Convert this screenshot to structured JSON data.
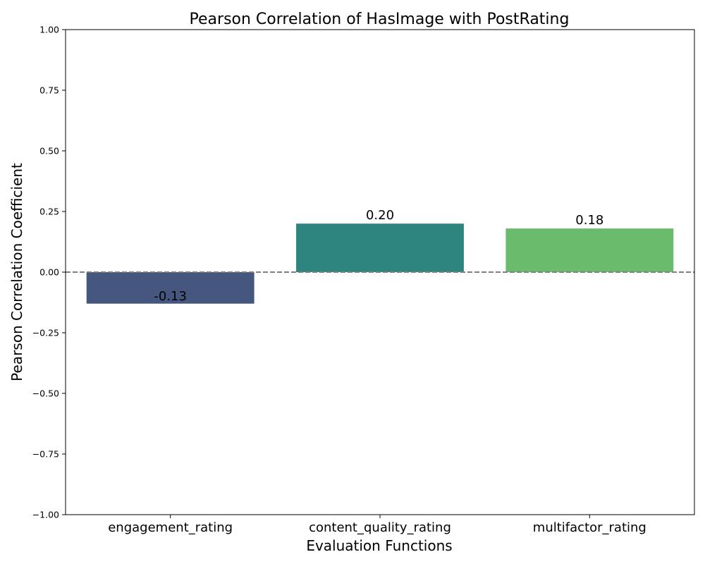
{
  "chart_data": {
    "type": "bar",
    "title": "Pearson Correlation of HasImage with PostRating",
    "xlabel": "Evaluation Functions",
    "ylabel": "Pearson Correlation Coefficient",
    "categories": [
      "engagement_rating",
      "content_quality_rating",
      "multifactor_rating"
    ],
    "values": [
      -0.13,
      0.2,
      0.18
    ],
    "value_labels": [
      "-0.13",
      "0.20",
      "0.18"
    ],
    "colors": [
      "#46577f",
      "#2e847f",
      "#6abc6c"
    ],
    "ylim": [
      -1.0,
      1.0
    ],
    "yticks": [
      -1.0,
      -0.75,
      -0.5,
      -0.25,
      0.0,
      0.25,
      0.5,
      0.75,
      1.0
    ],
    "ytick_labels": [
      "−1.00",
      "−0.75",
      "−0.50",
      "−0.25",
      "0.00",
      "0.25",
      "0.50",
      "0.75",
      "1.00"
    ],
    "reference_line": {
      "y": 0.0,
      "style": "dashed",
      "color": "#808080"
    },
    "grid": false,
    "legend": "none"
  }
}
